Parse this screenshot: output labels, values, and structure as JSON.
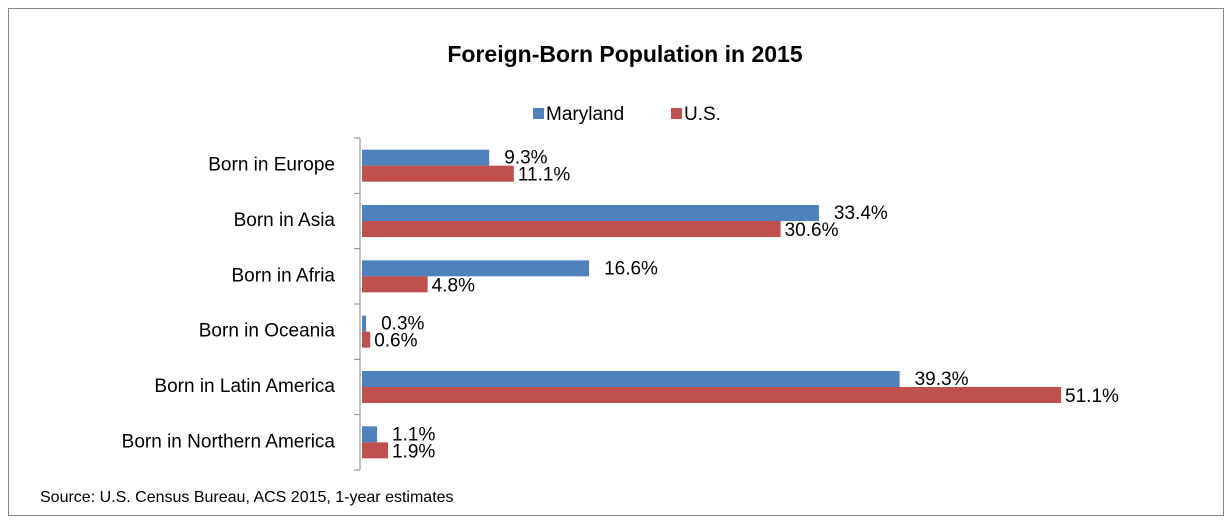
{
  "chart_data": {
    "type": "bar",
    "orientation": "horizontal",
    "title": "Foreign-Born Population in 2015",
    "categories": [
      "Born in Europe",
      "Born in Asia",
      "Born in Afria",
      "Born in Oceania",
      "Born in Latin America",
      "Born in Northern America"
    ],
    "series": [
      {
        "name": "Maryland",
        "color": "#4f81bd",
        "values": [
          9.3,
          33.4,
          16.6,
          0.3,
          39.3,
          1.1
        ],
        "value_labels": [
          "9.3%",
          "33.4%",
          "16.6%",
          "0.3%",
          "39.3%",
          "1.1%"
        ]
      },
      {
        "name": "U.S.",
        "color": "#c0504d",
        "values": [
          11.1,
          30.6,
          4.8,
          0.6,
          51.1,
          1.9
        ],
        "value_labels": [
          "11.1%",
          "30.6%",
          "4.8%",
          "0.6%",
          "51.1%",
          "1.9%"
        ]
      }
    ],
    "xlim": [
      0,
      60
    ],
    "legend": "top",
    "source": "Source: U.S. Census Bureau, ACS 2015, 1-year estimates"
  }
}
